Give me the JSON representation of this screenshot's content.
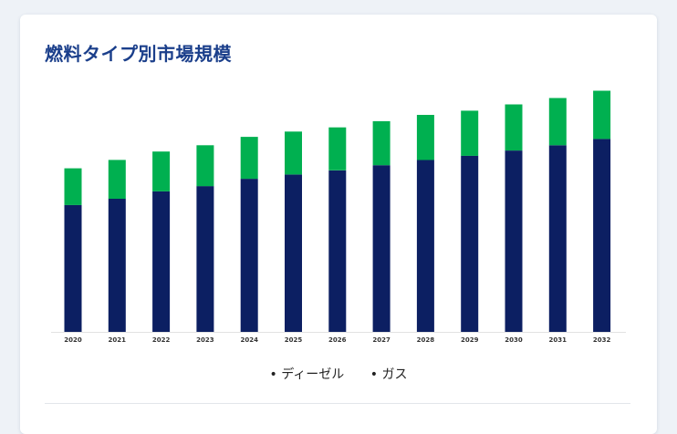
{
  "card": {
    "title": "燃料タイプ別市場規模"
  },
  "legend": {
    "bullet": "•",
    "items": [
      "ディーゼル",
      "ガス"
    ]
  },
  "colors": {
    "diesel": "#0c1f62",
    "gas": "#00b050",
    "title": "#1b3f8b"
  },
  "chart_data": {
    "type": "bar",
    "stacked": true,
    "categories": [
      "2020",
      "2021",
      "2022",
      "2023",
      "2024",
      "2025",
      "2026",
      "2027",
      "2028",
      "2029",
      "2030",
      "2031",
      "2032"
    ],
    "series": [
      {
        "name": "ディーゼル",
        "values": [
          121,
          127,
          134,
          139,
          146,
          150,
          154,
          159,
          164,
          168,
          173,
          178,
          184
        ]
      },
      {
        "name": "ガス",
        "values": [
          35,
          37,
          38,
          39,
          40,
          41,
          41,
          42,
          43,
          43,
          44,
          45,
          46
        ]
      }
    ],
    "ylim": [
      0,
      240
    ],
    "title": "",
    "xlabel": "",
    "ylabel": "",
    "grid": false,
    "legend": "bottom-center"
  }
}
